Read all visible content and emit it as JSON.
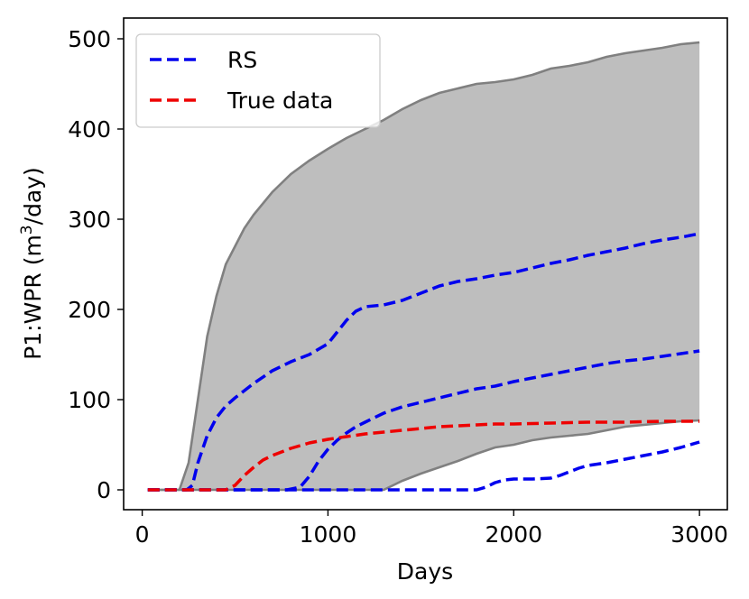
{
  "chart_data": {
    "type": "line",
    "xlabel": "Days",
    "ylabel": "P1:WPR (m3/day)",
    "ylabel_parts": {
      "pre": "P1:WPR (m",
      "sup": "3",
      "post": "/day)"
    },
    "xlim": [
      -100,
      3150
    ],
    "ylim": [
      -22,
      523
    ],
    "xticks": [
      0,
      1000,
      2000,
      3000
    ],
    "yticks": [
      0,
      100,
      200,
      300,
      400,
      500
    ],
    "xtick_labels": [
      "0",
      "1000",
      "2000",
      "3000"
    ],
    "ytick_labels": [
      "0",
      "100",
      "200",
      "300",
      "400",
      "500"
    ],
    "grid": false,
    "legend_position": "top-left",
    "legend": [
      {
        "label": "RS",
        "color": "#0000ee",
        "style": "dashed"
      },
      {
        "label": "True data",
        "color": "#ee0000",
        "style": "dashed"
      }
    ],
    "band": {
      "color": "#bebebe",
      "edge_color": "#808080",
      "upper": [
        [
          30,
          0
        ],
        [
          200,
          0
        ],
        [
          250,
          30
        ],
        [
          300,
          100
        ],
        [
          350,
          170
        ],
        [
          400,
          215
        ],
        [
          450,
          250
        ],
        [
          500,
          270
        ],
        [
          550,
          290
        ],
        [
          600,
          305
        ],
        [
          700,
          330
        ],
        [
          800,
          350
        ],
        [
          900,
          365
        ],
        [
          1000,
          378
        ],
        [
          1100,
          390
        ],
        [
          1200,
          400
        ],
        [
          1300,
          410
        ],
        [
          1400,
          422
        ],
        [
          1500,
          432
        ],
        [
          1600,
          440
        ],
        [
          1700,
          445
        ],
        [
          1800,
          450
        ],
        [
          1900,
          452
        ],
        [
          2000,
          455
        ],
        [
          2100,
          460
        ],
        [
          2200,
          467
        ],
        [
          2300,
          470
        ],
        [
          2400,
          474
        ],
        [
          2500,
          480
        ],
        [
          2600,
          484
        ],
        [
          2700,
          487
        ],
        [
          2800,
          490
        ],
        [
          2900,
          494
        ],
        [
          3000,
          496
        ]
      ],
      "lower": [
        [
          30,
          0
        ],
        [
          1300,
          0
        ],
        [
          1350,
          5
        ],
        [
          1400,
          10
        ],
        [
          1500,
          18
        ],
        [
          1600,
          25
        ],
        [
          1700,
          32
        ],
        [
          1800,
          40
        ],
        [
          1900,
          47
        ],
        [
          2000,
          50
        ],
        [
          2100,
          55
        ],
        [
          2200,
          58
        ],
        [
          2300,
          60
        ],
        [
          2400,
          62
        ],
        [
          2500,
          66
        ],
        [
          2600,
          70
        ],
        [
          2700,
          72
        ],
        [
          2800,
          74
        ],
        [
          2900,
          76
        ],
        [
          3000,
          77
        ]
      ]
    },
    "series": [
      {
        "name": "RS",
        "color": "#0000ee",
        "style": "dashed",
        "points": [
          [
            30,
            0
          ],
          [
            240,
            0
          ],
          [
            270,
            5
          ],
          [
            300,
            30
          ],
          [
            350,
            60
          ],
          [
            400,
            80
          ],
          [
            450,
            93
          ],
          [
            500,
            102
          ],
          [
            600,
            118
          ],
          [
            700,
            132
          ],
          [
            800,
            142
          ],
          [
            900,
            150
          ],
          [
            1000,
            162
          ],
          [
            1050,
            175
          ],
          [
            1100,
            188
          ],
          [
            1150,
            198
          ],
          [
            1200,
            203
          ],
          [
            1300,
            205
          ],
          [
            1400,
            210
          ],
          [
            1500,
            218
          ],
          [
            1600,
            226
          ],
          [
            1700,
            231
          ],
          [
            1800,
            234
          ],
          [
            1900,
            238
          ],
          [
            2000,
            241
          ],
          [
            2100,
            246
          ],
          [
            2200,
            251
          ],
          [
            2300,
            255
          ],
          [
            2400,
            260
          ],
          [
            2500,
            264
          ],
          [
            2600,
            268
          ],
          [
            2700,
            273
          ],
          [
            2800,
            277
          ],
          [
            2900,
            280
          ],
          [
            3000,
            284
          ]
        ]
      },
      {
        "name": "",
        "color": "#0000ee",
        "style": "dashed",
        "points": [
          [
            30,
            0
          ],
          [
            780,
            0
          ],
          [
            850,
            3
          ],
          [
            900,
            15
          ],
          [
            950,
            32
          ],
          [
            1000,
            45
          ],
          [
            1050,
            55
          ],
          [
            1100,
            63
          ],
          [
            1150,
            70
          ],
          [
            1200,
            75
          ],
          [
            1300,
            85
          ],
          [
            1400,
            92
          ],
          [
            1500,
            97
          ],
          [
            1600,
            102
          ],
          [
            1700,
            107
          ],
          [
            1800,
            112
          ],
          [
            1900,
            115
          ],
          [
            2000,
            120
          ],
          [
            2100,
            124
          ],
          [
            2200,
            128
          ],
          [
            2300,
            132
          ],
          [
            2400,
            136
          ],
          [
            2500,
            140
          ],
          [
            2600,
            143
          ],
          [
            2700,
            145
          ],
          [
            2800,
            148
          ],
          [
            2900,
            151
          ],
          [
            3000,
            154
          ]
        ]
      },
      {
        "name": "",
        "color": "#0000ee",
        "style": "dashed",
        "points": [
          [
            30,
            0
          ],
          [
            1800,
            0
          ],
          [
            1850,
            3
          ],
          [
            1900,
            8
          ],
          [
            1950,
            11
          ],
          [
            2000,
            12
          ],
          [
            2100,
            12
          ],
          [
            2200,
            13
          ],
          [
            2250,
            16
          ],
          [
            2300,
            20
          ],
          [
            2350,
            24
          ],
          [
            2400,
            27
          ],
          [
            2500,
            30
          ],
          [
            2600,
            34
          ],
          [
            2700,
            38
          ],
          [
            2800,
            42
          ],
          [
            2900,
            47
          ],
          [
            3000,
            53
          ]
        ]
      },
      {
        "name": "True data",
        "color": "#ee0000",
        "style": "dashed",
        "points": [
          [
            30,
            0
          ],
          [
            450,
            0
          ],
          [
            500,
            5
          ],
          [
            550,
            16
          ],
          [
            600,
            25
          ],
          [
            650,
            33
          ],
          [
            700,
            38
          ],
          [
            750,
            42
          ],
          [
            800,
            46
          ],
          [
            850,
            49
          ],
          [
            900,
            52
          ],
          [
            950,
            54
          ],
          [
            1000,
            56
          ],
          [
            1100,
            59
          ],
          [
            1200,
            62
          ],
          [
            1300,
            64
          ],
          [
            1400,
            66
          ],
          [
            1500,
            68
          ],
          [
            1600,
            70
          ],
          [
            1700,
            71
          ],
          [
            1800,
            72
          ],
          [
            1900,
            73
          ],
          [
            2000,
            73
          ],
          [
            2200,
            74
          ],
          [
            2400,
            75
          ],
          [
            2600,
            75
          ],
          [
            2800,
            76
          ],
          [
            3000,
            76
          ]
        ]
      }
    ]
  }
}
